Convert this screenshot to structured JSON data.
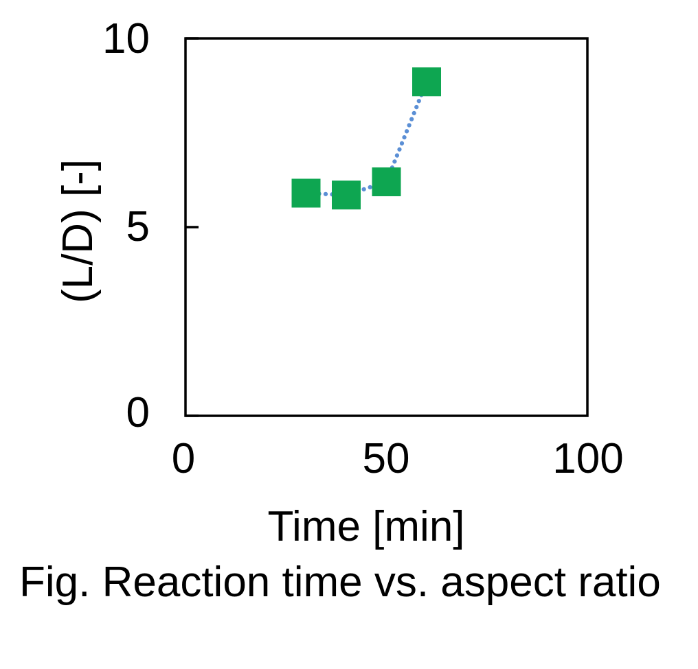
{
  "figure": {
    "caption": "Fig. Reaction time vs. aspect ratio"
  },
  "chart_data": {
    "type": "scatter",
    "title": "",
    "xlabel": "Time [min]",
    "ylabel": "(L/D) [-]",
    "xlim": [
      0,
      100
    ],
    "ylim": [
      0,
      10
    ],
    "x_tick_values": [
      0,
      50,
      100
    ],
    "y_tick_values": [
      0,
      5,
      10
    ],
    "x_tick_labels": [
      "0",
      "50",
      "100"
    ],
    "y_tick_labels": [
      "0",
      "5",
      "10"
    ],
    "grid": false,
    "legend": false,
    "colors": {
      "marker": "#0EA651",
      "line": "#5B8FD5",
      "axis": "#000000",
      "text": "#000000",
      "background": "#FFFFFF"
    },
    "series": [
      {
        "name": "aspect ratio",
        "marker": "square",
        "marker_size_px": 42,
        "line_style": "dotted",
        "x": [
          30,
          40,
          50,
          60
        ],
        "y": [
          5.9,
          5.85,
          6.2,
          8.85
        ]
      }
    ]
  }
}
